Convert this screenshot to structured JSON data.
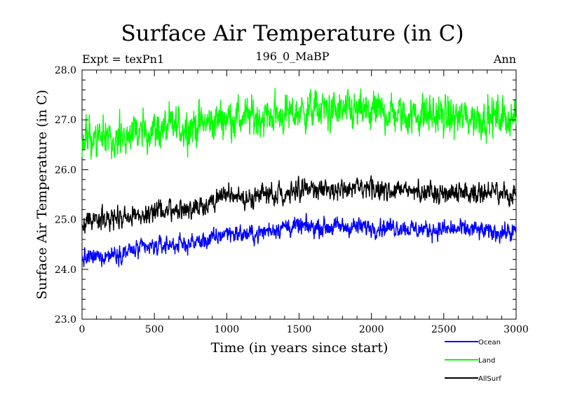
{
  "chart_data": {
    "type": "line",
    "title": "Surface Air Temperature (in C)",
    "subtitle_left": "Expt = texPn1",
    "subtitle_center": "196_0_MaBP",
    "subtitle_right": "Ann",
    "xlabel": "Time (in years since start)",
    "ylabel": "Surface Air Temperature (in C)",
    "xlim": [
      0,
      3000
    ],
    "ylim": [
      23.0,
      28.0
    ],
    "x_ticks": [
      0,
      500,
      1000,
      1500,
      2000,
      2500,
      3000
    ],
    "x_tick_labels": [
      "0",
      "500",
      "1000",
      "1500",
      "2000",
      "2500",
      "3000"
    ],
    "y_ticks": [
      23.0,
      24.0,
      25.0,
      26.0,
      27.0,
      28.0
    ],
    "y_tick_labels": [
      "23.0",
      "24.0",
      "25.0",
      "26.0",
      "27.0",
      "28.0"
    ],
    "grid": false,
    "legend_position": "bottom-right",
    "series": [
      {
        "name": "Ocean",
        "color": "#0000ff",
        "x": [
          0,
          100,
          200,
          300,
          400,
          500,
          600,
          700,
          800,
          900,
          1000,
          1100,
          1200,
          1300,
          1400,
          1500,
          1600,
          1700,
          1800,
          1900,
          2000,
          2100,
          2200,
          2300,
          2400,
          2500,
          2600,
          2700,
          2800,
          2900,
          3000
        ],
        "values": [
          24.2,
          24.25,
          24.3,
          24.35,
          24.4,
          24.45,
          24.5,
          24.5,
          24.55,
          24.6,
          24.75,
          24.7,
          24.7,
          24.8,
          24.85,
          24.85,
          24.85,
          24.85,
          24.85,
          24.85,
          24.85,
          24.85,
          24.85,
          24.8,
          24.8,
          24.8,
          24.8,
          24.8,
          24.75,
          24.75,
          24.75
        ],
        "amplitude": 0.18
      },
      {
        "name": "Land",
        "color": "#00ff00",
        "x": [
          0,
          100,
          200,
          300,
          400,
          500,
          600,
          700,
          800,
          900,
          1000,
          1100,
          1200,
          1300,
          1400,
          1500,
          1600,
          1700,
          1800,
          1900,
          2000,
          2100,
          2200,
          2300,
          2400,
          2500,
          2600,
          2700,
          2800,
          2900,
          3000
        ],
        "values": [
          26.55,
          26.6,
          26.65,
          26.7,
          26.75,
          26.8,
          26.85,
          26.85,
          26.9,
          26.95,
          27.05,
          27.05,
          27.05,
          27.1,
          27.1,
          27.15,
          27.2,
          27.2,
          27.15,
          27.15,
          27.15,
          27.15,
          27.1,
          27.1,
          27.1,
          27.05,
          27.05,
          27.05,
          27.05,
          27.05,
          27.05
        ],
        "amplitude": 0.38
      },
      {
        "name": "AllSurf",
        "color": "#000000",
        "x": [
          0,
          100,
          200,
          300,
          400,
          500,
          600,
          700,
          800,
          900,
          1000,
          1100,
          1200,
          1300,
          1400,
          1500,
          1600,
          1700,
          1800,
          1900,
          2000,
          2100,
          2200,
          2300,
          2400,
          2500,
          2600,
          2700,
          2800,
          2900,
          3000
        ],
        "values": [
          24.95,
          25.0,
          25.0,
          25.05,
          25.1,
          25.15,
          25.2,
          25.2,
          25.25,
          25.35,
          25.5,
          25.45,
          25.45,
          25.5,
          25.55,
          25.6,
          25.6,
          25.6,
          25.6,
          25.6,
          25.6,
          25.6,
          25.6,
          25.55,
          25.55,
          25.55,
          25.55,
          25.55,
          25.55,
          25.5,
          25.5
        ],
        "amplitude": 0.2
      }
    ]
  }
}
